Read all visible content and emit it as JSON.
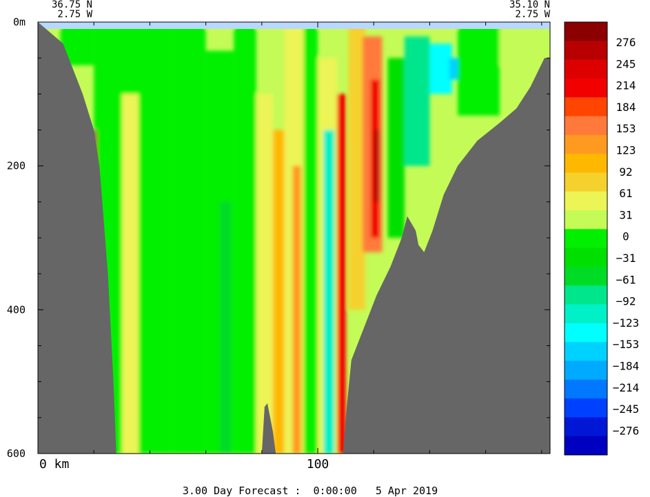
{
  "chart_data": {
    "type": "heatmap",
    "title": "",
    "left_lat": "36.75 N",
    "left_lon": "2.75 W",
    "right_lat": "35.10 N",
    "right_lon": "2.75 W",
    "xlabel": "",
    "ylabel": "",
    "x_tick_labels": [
      "0 km",
      "100"
    ],
    "x_tick_values": [
      0,
      100
    ],
    "xlim": [
      0,
      183
    ],
    "y_tick_labels": [
      "0m",
      "200",
      "400",
      "600"
    ],
    "y_tick_values": [
      0,
      200,
      400,
      600
    ],
    "ylim": [
      0,
      600
    ],
    "y_inverted": true,
    "legend_position": "right",
    "colorbar_labels": [
      "276",
      "245",
      "214",
      "184",
      "153",
      "123",
      "92",
      "61",
      "31",
      "0",
      "-31",
      "-61",
      "-92",
      "-123",
      "-153",
      "-184",
      "-214",
      "-245",
      "-276"
    ],
    "colorbar_colors": [
      "#8b0000",
      "#b80000",
      "#dd0000",
      "#f20000",
      "#ff4500",
      "#ff7a3a",
      "#ff9a20",
      "#ffb800",
      "#f5d12e",
      "#ecf456",
      "#c4fb57",
      "#00f000",
      "#00e000",
      "#00dc26",
      "#00e68c",
      "#00f0c8",
      "#00ffff",
      "#00d2ff",
      "#00aaff",
      "#0078ff",
      "#0040ff",
      "#0018d6",
      "#0000c0"
    ],
    "bottom_depth_profile": [
      [
        0,
        0
      ],
      [
        9,
        30
      ],
      [
        16,
        100
      ],
      [
        20,
        150
      ],
      [
        22,
        200
      ],
      [
        25,
        350
      ],
      [
        27,
        500
      ],
      [
        28,
        600
      ],
      [
        80,
        600
      ],
      [
        81,
        535
      ],
      [
        82,
        530
      ],
      [
        84,
        570
      ],
      [
        85,
        600
      ],
      [
        109,
        600
      ],
      [
        110,
        550
      ],
      [
        112,
        470
      ],
      [
        117,
        420
      ],
      [
        121,
        380
      ],
      [
        126,
        340
      ],
      [
        130,
        300
      ],
      [
        132,
        270
      ],
      [
        135,
        290
      ],
      [
        136,
        310
      ],
      [
        138,
        320
      ],
      [
        141,
        290
      ],
      [
        145,
        240
      ],
      [
        150,
        200
      ],
      [
        157,
        165
      ],
      [
        165,
        140
      ],
      [
        171,
        120
      ],
      [
        176,
        90
      ],
      [
        181,
        50
      ],
      [
        183,
        50
      ]
    ]
  },
  "footer": {
    "caption": "3.00 Day Forecast :  0:00:00   5 Apr 2019"
  }
}
